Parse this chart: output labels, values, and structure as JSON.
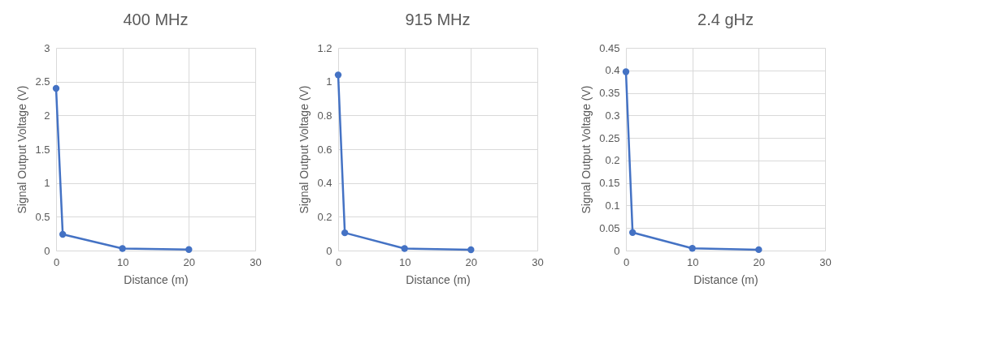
{
  "chart_data": [
    {
      "type": "line",
      "title": "400 MHz",
      "xlabel": "Distance (m)",
      "ylabel": "Signal Output Voltage (V)",
      "x": [
        0,
        1,
        10,
        20
      ],
      "series": [
        {
          "color": "#4472c4",
          "values": [
            2.4,
            0.24,
            0.03,
            0.015
          ]
        }
      ],
      "xlim": [
        0,
        30
      ],
      "xticks": [
        0,
        10,
        20,
        30
      ],
      "ylim": [
        0,
        3
      ],
      "yticks": [
        0,
        0.5,
        1,
        1.5,
        2,
        2.5,
        3
      ],
      "grid": true,
      "marker": "circle",
      "line_style": "solid"
    },
    {
      "type": "line",
      "title": "915 MHz",
      "xlabel": "Distance (m)",
      "ylabel": "Signal Output Voltage (V)",
      "x": [
        0,
        1,
        10,
        20
      ],
      "series": [
        {
          "color": "#4472c4",
          "values": [
            1.04,
            0.105,
            0.012,
            0.005
          ]
        }
      ],
      "xlim": [
        0,
        30
      ],
      "xticks": [
        0,
        10,
        20,
        30
      ],
      "ylim": [
        0,
        1.2
      ],
      "yticks": [
        0,
        0.2,
        0.4,
        0.6,
        0.8,
        1,
        1.2
      ],
      "grid": true,
      "marker": "circle",
      "line_style": "solid"
    },
    {
      "type": "line",
      "title": "2.4 gHz",
      "xlabel": "Distance (m)",
      "ylabel": "Signal Output Voltage (V)",
      "x": [
        0,
        1,
        10,
        20
      ],
      "series": [
        {
          "color": "#4472c4",
          "values": [
            0.397,
            0.04,
            0.005,
            0.002
          ]
        }
      ],
      "xlim": [
        0,
        30
      ],
      "xticks": [
        0,
        10,
        20,
        30
      ],
      "ylim": [
        0,
        0.45
      ],
      "yticks": [
        0,
        0.05,
        0.1,
        0.15,
        0.2,
        0.25,
        0.3,
        0.35,
        0.4,
        0.45
      ],
      "grid": true,
      "marker": "circle",
      "line_style": "solid"
    }
  ]
}
